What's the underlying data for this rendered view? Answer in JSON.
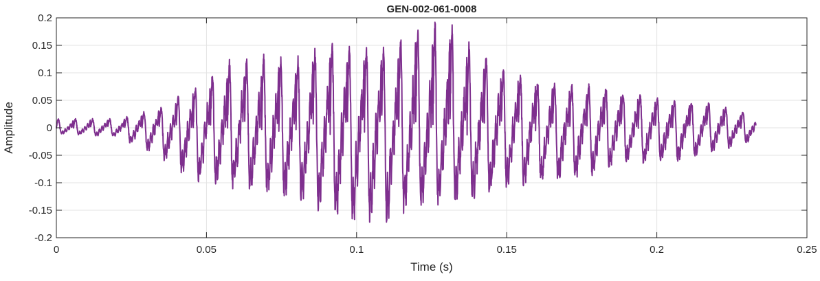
{
  "chart_data": {
    "type": "line",
    "title": "GEN-002-061-0008",
    "xlabel": "Time (s)",
    "ylabel": "Amplitude",
    "xlim": [
      0,
      0.25
    ],
    "ylim": [
      -0.2,
      0.2
    ],
    "grid": true,
    "line_color": "#7E2F8E",
    "xticks": [
      0,
      0.05,
      0.1,
      0.15,
      0.2,
      0.25
    ],
    "xtick_labels": [
      "0",
      "0.05",
      "0.1",
      "0.15",
      "0.2",
      "0.25"
    ],
    "yticks": [
      -0.2,
      -0.15,
      -0.1,
      -0.05,
      0,
      0.05,
      0.1,
      0.15,
      0.2
    ],
    "ytick_labels": [
      "-0.2",
      "-0.15",
      "-0.1",
      "-0.05",
      "0",
      "0.05",
      "0.1",
      "0.15",
      "0.2"
    ],
    "signal_duration": 0.233,
    "approx_period": 0.0057,
    "envelope_max": {
      "t": [
        0,
        0.02,
        0.035,
        0.045,
        0.06,
        0.07,
        0.08,
        0.09,
        0.1,
        0.11,
        0.12,
        0.13,
        0.14,
        0.15,
        0.16,
        0.18,
        0.2,
        0.22,
        0.233
      ],
      "v": [
        0.015,
        0.015,
        0.035,
        0.065,
        0.12,
        0.12,
        0.12,
        0.14,
        0.14,
        0.13,
        0.18,
        0.18,
        0.13,
        0.1,
        0.08,
        0.07,
        0.05,
        0.04,
        0.02
      ]
    },
    "envelope_min": {
      "t": [
        0,
        0.02,
        0.035,
        0.045,
        0.06,
        0.08,
        0.095,
        0.11,
        0.12,
        0.13,
        0.14,
        0.15,
        0.17,
        0.19,
        0.21,
        0.233
      ],
      "v": [
        -0.01,
        -0.015,
        -0.05,
        -0.085,
        -0.1,
        -0.12,
        -0.155,
        -0.155,
        -0.13,
        -0.13,
        -0.12,
        -0.1,
        -0.09,
        -0.06,
        -0.055,
        -0.02
      ]
    }
  }
}
